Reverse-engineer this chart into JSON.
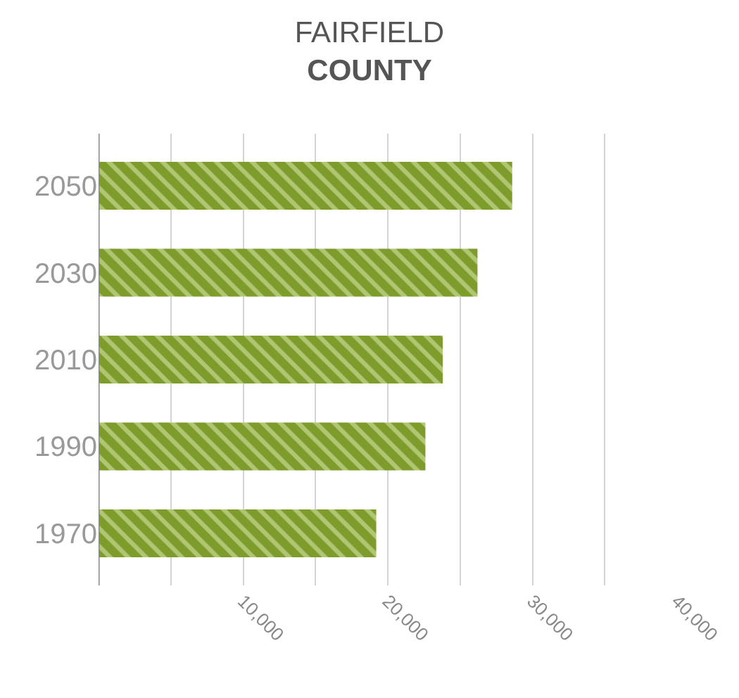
{
  "chart_data": {
    "type": "bar",
    "orientation": "horizontal",
    "title": "FAIRFIELD\nCOUNTY",
    "categories": [
      "2050",
      "2030",
      "2010",
      "1990",
      "1970"
    ],
    "values": [
      28600,
      26200,
      23800,
      22600,
      19200
    ],
    "color": "#7d9c2c",
    "xlim": [
      0,
      40000
    ],
    "xticks": [
      {
        "value": 0,
        "label": null
      },
      {
        "value": 5000,
        "label": null
      },
      {
        "value": 10000,
        "label": "10,000"
      },
      {
        "value": 15000,
        "label": null
      },
      {
        "value": 20000,
        "label": "20,000"
      },
      {
        "value": 25000,
        "label": null
      },
      {
        "value": 30000,
        "label": "30,000"
      },
      {
        "value": 35000,
        "label": null
      },
      {
        "value": 40000,
        "label": "40,000"
      }
    ],
    "grid": "x"
  }
}
